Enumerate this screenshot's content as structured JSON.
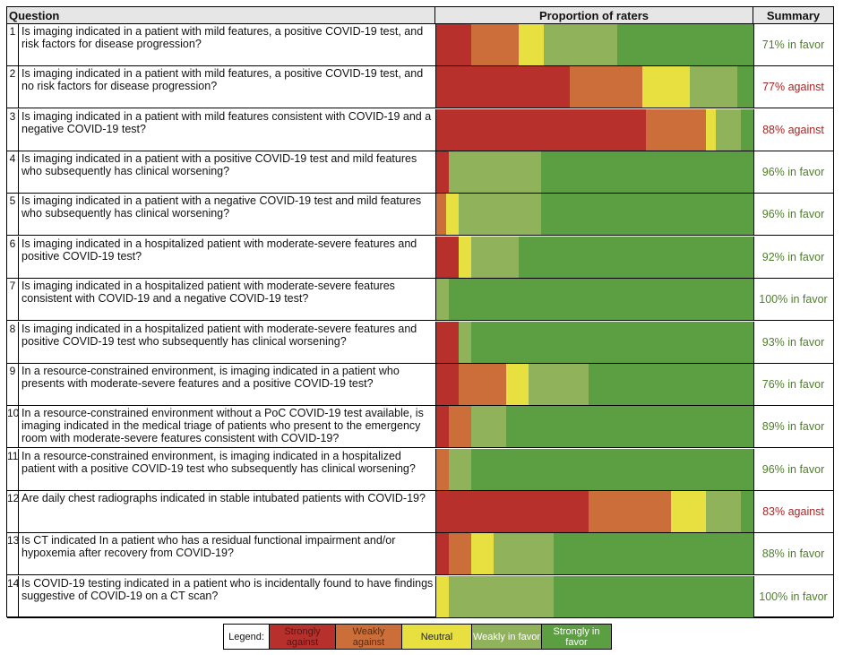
{
  "header": {
    "question": "Question",
    "proportion": "Proportion of raters",
    "summary": "Summary"
  },
  "legend": {
    "label": "Legend:",
    "items": [
      {
        "name": "Strongly against",
        "color": "#b8302b"
      },
      {
        "name": "Weakly against",
        "color": "#cc6e3a"
      },
      {
        "name": "Neutral",
        "color": "#e8e041"
      },
      {
        "name": "Weakly in favor",
        "color": "#8fb25a"
      },
      {
        "name": "Strongly in favor",
        "color": "#5c9e42"
      }
    ]
  },
  "chart_data": {
    "type": "bar",
    "stacked": true,
    "percent": true,
    "categories": [
      "Strongly against",
      "Weakly against",
      "Neutral",
      "Weakly in favor",
      "Strongly in favor"
    ],
    "rows": [
      {
        "n": "1",
        "question": "Is imaging indicated in a patient with mild features, a positive COVID-19 test, and risk factors for disease progression?",
        "values": [
          11,
          15,
          8,
          23,
          43
        ],
        "summary": "71% in favor",
        "summary_color": "#4f7f2a"
      },
      {
        "n": "2",
        "question": "Is imaging indicated in a patient with mild features, a positive COVID-19 test, and no risk factors for disease progression?",
        "values": [
          42,
          23,
          15,
          15,
          5
        ],
        "summary": "77% against",
        "summary_color": "#a02828"
      },
      {
        "n": "3",
        "question": "Is imaging indicated in a patient with mild features consistent with COVID-19 and a negative COVID-19 test?",
        "values": [
          66,
          19,
          3,
          8,
          4
        ],
        "summary": "88% against",
        "summary_color": "#a02828"
      },
      {
        "n": "4",
        "question": "Is imaging indicated in a patient with a positive COVID-19 test and mild features who subsequently has clinical worsening?",
        "values": [
          4,
          0,
          0,
          29,
          67
        ],
        "summary": "96% in favor",
        "summary_color": "#4f7f2a"
      },
      {
        "n": "5",
        "question": "Is imaging indicated in a patient with a negative COVID-19 test and mild features who subsequently has clinical worsening?",
        "values": [
          0,
          3,
          4,
          26,
          67
        ],
        "summary": "96% in favor",
        "summary_color": "#4f7f2a"
      },
      {
        "n": "6",
        "question": "Is imaging indicated in a hospitalized patient with moderate-severe features and positive COVID-19 test?",
        "values": [
          7,
          0,
          4,
          15,
          74
        ],
        "summary": "92% in favor",
        "summary_color": "#4f7f2a"
      },
      {
        "n": "7",
        "question": "Is imaging indicated in a hospitalized patient with moderate-severe features consistent with COVID-19 and a negative COVID-19 test?",
        "values": [
          0,
          0,
          0,
          4,
          96
        ],
        "summary": "100% in favor",
        "summary_color": "#4f7f2a"
      },
      {
        "n": "8",
        "question": "Is imaging indicated in a hospitalized patient with moderate-severe features and positive COVID-19 test who subsequently has clinical worsening?",
        "values": [
          7,
          0,
          0,
          4,
          89
        ],
        "summary": "93% in favor",
        "summary_color": "#4f7f2a"
      },
      {
        "n": "9",
        "question": "In a resource-constrained environment, is imaging indicated in a patient who presents with moderate-severe features and a positive COVID-19 test?",
        "values": [
          7,
          15,
          7,
          19,
          52
        ],
        "summary": "76% in favor",
        "summary_color": "#4f7f2a"
      },
      {
        "n": "10",
        "question": "In a resource-constrained environment without a PoC COVID-19 test available, is imaging indicated in the medical triage of patients who present to the emergency room with moderate-severe features consistent with COVID-19?",
        "values": [
          4,
          7,
          0,
          11,
          78
        ],
        "summary": "89% in favor",
        "summary_color": "#4f7f2a"
      },
      {
        "n": "11",
        "question": "In a resource-constrained environment, is imaging indicated in a hospitalized patient with a positive COVID-19 test who subsequently has clinical worsening?",
        "values": [
          0,
          4,
          0,
          7,
          89
        ],
        "summary": "96% in favor",
        "summary_color": "#4f7f2a"
      },
      {
        "n": "12",
        "question": "Are daily chest radiographs indicated in stable intubated patients with COVID-19?",
        "values": [
          48,
          26,
          11,
          11,
          4
        ],
        "summary": "83% against",
        "summary_color": "#a02828"
      },
      {
        "n": "13",
        "question": "Is CT indicated In a patient who has a residual functional impairment and/or hypoxemia after recovery from COVID-19?",
        "values": [
          4,
          7,
          7,
          19,
          63
        ],
        "summary": "88% in favor",
        "summary_color": "#4f7f2a"
      },
      {
        "n": "14",
        "question": "Is COVID-19 testing indicated in a patient who is incidentally found to have findings suggestive of COVID-19 on a CT scan?",
        "values": [
          0,
          0,
          4,
          33,
          63
        ],
        "summary": "100% in favor",
        "summary_color": "#4f7f2a"
      }
    ]
  }
}
